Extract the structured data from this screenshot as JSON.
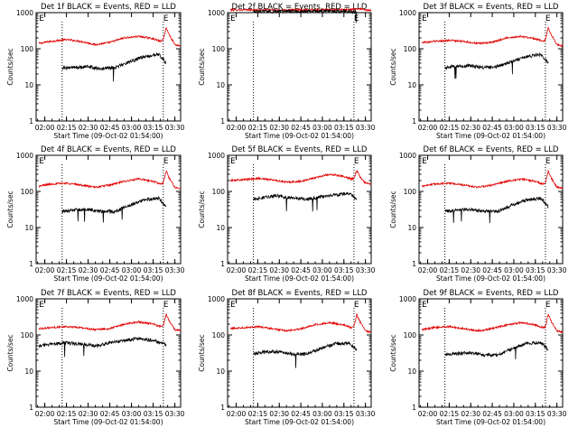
{
  "colors": {
    "events": "#000000",
    "lld": "#e00000",
    "axes": "#000000",
    "background": "#ffffff"
  },
  "chart_data": [
    {
      "type": "line",
      "title": "Det 1f BLACK = Events, RED = LLD",
      "xlabel": "Start Time (09-Oct-02 01:54:00)",
      "ylabel": "Counts/sec",
      "x_ticks": [
        "02:00",
        "02:15",
        "02:30",
        "02:45",
        "03:00",
        "03:15",
        "03:30"
      ],
      "y_ticks": [
        "1",
        "10",
        "100",
        "1000"
      ],
      "xlim_minutes_after_start": [
        0,
        100
      ],
      "ylim": [
        1,
        1000
      ],
      "yscale": "log",
      "markers": [
        "E",
        "E"
      ],
      "series": [
        {
          "name": "LLD",
          "color": "red",
          "x": [
            2,
            10,
            21,
            31,
            41,
            51,
            61,
            71,
            81,
            86,
            88,
            90,
            92,
            96,
            100
          ],
          "y": [
            140,
            160,
            180,
            160,
            130,
            150,
            200,
            220,
            190,
            160,
            180,
            380,
            250,
            130,
            120
          ]
        },
        {
          "name": "Events",
          "color": "black",
          "x": [
            18,
            25,
            35,
            45,
            55,
            65,
            75,
            85,
            90
          ],
          "y": [
            30,
            30,
            32,
            28,
            30,
            45,
            60,
            70,
            40
          ]
        }
      ]
    },
    {
      "type": "line",
      "title": "Det 2f BLACK = Events, RED = LLD",
      "xlabel": "Start Time (09-Oct-02 01:54:00)",
      "ylabel": "Counts/sec",
      "x_ticks": [
        "02:00",
        "02:15",
        "02:30",
        "02:45",
        "03:00",
        "03:15",
        "03:30"
      ],
      "y_ticks": [
        "1",
        "10",
        "100",
        "1000"
      ],
      "xlim_minutes_after_start": [
        0,
        100
      ],
      "ylim": [
        1,
        1000
      ],
      "yscale": "log",
      "markers": [
        "E",
        "E"
      ],
      "series": [
        {
          "name": "LLD",
          "color": "red",
          "x": [
            2,
            15,
            30,
            45,
            60,
            75,
            87,
            92,
            96,
            100
          ],
          "y": [
            1200,
            1190,
            1180,
            1190,
            1200,
            1200,
            1220,
            1300,
            1180,
            1150
          ]
        },
        {
          "name": "Events",
          "color": "black",
          "x": [
            18,
            30,
            45,
            60,
            75,
            85,
            90
          ],
          "y": [
            1100,
            1080,
            1100,
            1100,
            1100,
            1080,
            1050
          ]
        }
      ]
    },
    {
      "type": "line",
      "title": "Det 3f BLACK = Events, RED = LLD",
      "xlabel": "Start Time (09-Oct-02 01:54:00)",
      "ylabel": "Counts/sec",
      "x_ticks": [
        "02:00",
        "02:15",
        "02:30",
        "02:45",
        "03:00",
        "03:15",
        "03:30"
      ],
      "y_ticks": [
        "1",
        "10",
        "100",
        "1000"
      ],
      "xlim_minutes_after_start": [
        0,
        100
      ],
      "ylim": [
        1,
        1000
      ],
      "yscale": "log",
      "markers": [
        "E",
        "E"
      ],
      "series": [
        {
          "name": "LLD",
          "color": "red",
          "x": [
            2,
            10,
            21,
            31,
            41,
            51,
            61,
            71,
            81,
            86,
            88,
            90,
            92,
            96,
            100
          ],
          "y": [
            150,
            160,
            170,
            160,
            140,
            150,
            200,
            220,
            190,
            160,
            180,
            380,
            250,
            130,
            120
          ]
        },
        {
          "name": "Events",
          "color": "black",
          "x": [
            18,
            25,
            35,
            45,
            55,
            65,
            75,
            85,
            90
          ],
          "y": [
            30,
            32,
            34,
            30,
            32,
            45,
            60,
            70,
            40
          ]
        }
      ]
    },
    {
      "type": "line",
      "title": "Det 4f BLACK = Events, RED = LLD",
      "xlabel": "Start Time (09-Oct-02 01:54:00)",
      "ylabel": "Counts/sec",
      "x_ticks": [
        "02:00",
        "02:15",
        "02:30",
        "02:45",
        "03:00",
        "03:15",
        "03:30"
      ],
      "y_ticks": [
        "1",
        "10",
        "100",
        "1000"
      ],
      "xlim_minutes_after_start": [
        0,
        100
      ],
      "ylim": [
        1,
        1000
      ],
      "yscale": "log",
      "markers": [
        "E",
        "E"
      ],
      "series": [
        {
          "name": "LLD",
          "color": "red",
          "x": [
            2,
            10,
            21,
            31,
            41,
            51,
            61,
            71,
            81,
            86,
            88,
            90,
            92,
            96,
            100
          ],
          "y": [
            140,
            160,
            170,
            150,
            130,
            150,
            190,
            220,
            190,
            160,
            170,
            370,
            240,
            130,
            120
          ]
        },
        {
          "name": "Events",
          "color": "black",
          "x": [
            18,
            25,
            35,
            45,
            55,
            65,
            75,
            85,
            90
          ],
          "y": [
            28,
            30,
            32,
            28,
            28,
            42,
            58,
            65,
            38
          ]
        }
      ]
    },
    {
      "type": "line",
      "title": "Det 5f BLACK = Events, RED = LLD",
      "xlabel": "Start Time (09-Oct-02 01:54:00)",
      "ylabel": "Counts/sec",
      "x_ticks": [
        "02:00",
        "02:15",
        "02:30",
        "02:45",
        "03:00",
        "03:15",
        "03:30"
      ],
      "y_ticks": [
        "1",
        "10",
        "100",
        "1000"
      ],
      "xlim_minutes_after_start": [
        0,
        100
      ],
      "ylim": [
        1,
        1000
      ],
      "yscale": "log",
      "markers": [
        "E",
        "E"
      ],
      "series": [
        {
          "name": "LLD",
          "color": "red",
          "x": [
            2,
            10,
            21,
            31,
            41,
            51,
            61,
            71,
            81,
            86,
            88,
            90,
            92,
            96,
            100
          ],
          "y": [
            200,
            210,
            230,
            210,
            180,
            190,
            240,
            300,
            260,
            220,
            230,
            380,
            260,
            170,
            160
          ]
        },
        {
          "name": "Events",
          "color": "black",
          "x": [
            18,
            25,
            35,
            45,
            55,
            65,
            75,
            85,
            90
          ],
          "y": [
            60,
            70,
            75,
            65,
            60,
            70,
            80,
            90,
            60
          ]
        }
      ]
    },
    {
      "type": "line",
      "title": "Det 6f BLACK = Events, RED = LLD",
      "xlabel": "Start Time (09-Oct-02 01:54:00)",
      "ylabel": "Counts/sec",
      "x_ticks": [
        "02:00",
        "02:15",
        "02:30",
        "02:45",
        "03:00",
        "03:15",
        "03:30"
      ],
      "y_ticks": [
        "1",
        "10",
        "100",
        "1000"
      ],
      "xlim_minutes_after_start": [
        0,
        100
      ],
      "ylim": [
        1,
        1000
      ],
      "yscale": "log",
      "markers": [
        "E",
        "E"
      ],
      "series": [
        {
          "name": "LLD",
          "color": "red",
          "x": [
            2,
            10,
            21,
            31,
            41,
            51,
            61,
            71,
            81,
            86,
            88,
            90,
            92,
            96,
            100
          ],
          "y": [
            140,
            160,
            170,
            150,
            130,
            150,
            190,
            220,
            190,
            160,
            170,
            370,
            240,
            130,
            120
          ]
        },
        {
          "name": "Events",
          "color": "black",
          "x": [
            18,
            25,
            35,
            45,
            55,
            65,
            75,
            85,
            90
          ],
          "y": [
            28,
            30,
            32,
            28,
            28,
            42,
            58,
            65,
            38
          ]
        }
      ]
    },
    {
      "type": "line",
      "title": "Det 7f BLACK = Events, RED = LLD",
      "xlabel": "Start Time (09-Oct-02 01:54:00)",
      "ylabel": "Counts/sec",
      "x_ticks": [
        "02:00",
        "02:15",
        "02:30",
        "02:45",
        "03:00",
        "03:15",
        "03:30"
      ],
      "y_ticks": [
        "1",
        "10",
        "100",
        "1000"
      ],
      "xlim_minutes_after_start": [
        0,
        100
      ],
      "ylim": [
        1,
        1000
      ],
      "yscale": "log",
      "markers": [
        "E",
        "E"
      ],
      "series": [
        {
          "name": "LLD",
          "color": "red",
          "x": [
            2,
            10,
            21,
            31,
            41,
            51,
            61,
            71,
            81,
            86,
            88,
            90,
            92,
            96,
            100
          ],
          "y": [
            150,
            160,
            170,
            160,
            140,
            150,
            200,
            230,
            200,
            170,
            180,
            380,
            250,
            140,
            130
          ]
        },
        {
          "name": "Events",
          "color": "black",
          "x": [
            2,
            10,
            21,
            31,
            41,
            51,
            61,
            71,
            81,
            90
          ],
          "y": [
            50,
            55,
            60,
            55,
            50,
            60,
            70,
            80,
            70,
            55
          ]
        }
      ]
    },
    {
      "type": "line",
      "title": "Det 8f BLACK = Events, RED = LLD",
      "xlabel": "Start Time (09-Oct-02 01:54:00)",
      "ylabel": "Counts/sec",
      "x_ticks": [
        "02:00",
        "02:15",
        "02:30",
        "02:45",
        "03:00",
        "03:15",
        "03:30"
      ],
      "y_ticks": [
        "1",
        "10",
        "100",
        "1000"
      ],
      "xlim_minutes_after_start": [
        0,
        100
      ],
      "ylim": [
        1,
        1000
      ],
      "yscale": "log",
      "markers": [
        "E",
        "E"
      ],
      "series": [
        {
          "name": "LLD",
          "color": "red",
          "x": [
            2,
            10,
            21,
            31,
            41,
            51,
            61,
            71,
            81,
            86,
            88,
            90,
            92,
            96,
            100
          ],
          "y": [
            150,
            160,
            170,
            150,
            130,
            150,
            190,
            220,
            190,
            160,
            170,
            370,
            240,
            130,
            120
          ]
        },
        {
          "name": "Events",
          "color": "black",
          "x": [
            18,
            25,
            35,
            45,
            55,
            65,
            75,
            85,
            90
          ],
          "y": [
            30,
            34,
            34,
            30,
            30,
            42,
            58,
            60,
            38
          ]
        }
      ]
    },
    {
      "type": "line",
      "title": "Det 9f BLACK = Events, RED = LLD",
      "xlabel": "Start Time (09-Oct-02 01:54:00)",
      "ylabel": "Counts/sec",
      "x_ticks": [
        "02:00",
        "02:15",
        "02:30",
        "02:45",
        "03:00",
        "03:15",
        "03:30"
      ],
      "y_ticks": [
        "1",
        "10",
        "100",
        "1000"
      ],
      "xlim_minutes_after_start": [
        0,
        100
      ],
      "ylim": [
        1,
        1000
      ],
      "yscale": "log",
      "markers": [
        "E",
        "E"
      ],
      "series": [
        {
          "name": "LLD",
          "color": "red",
          "x": [
            2,
            10,
            21,
            31,
            41,
            51,
            61,
            71,
            81,
            86,
            88,
            90,
            92,
            96,
            100
          ],
          "y": [
            140,
            160,
            170,
            150,
            130,
            150,
            190,
            220,
            190,
            160,
            170,
            370,
            240,
            130,
            120
          ]
        },
        {
          "name": "Events",
          "color": "black",
          "x": [
            18,
            25,
            35,
            45,
            55,
            65,
            75,
            85,
            90
          ],
          "y": [
            28,
            30,
            32,
            28,
            28,
            42,
            58,
            62,
            38
          ]
        }
      ]
    }
  ]
}
